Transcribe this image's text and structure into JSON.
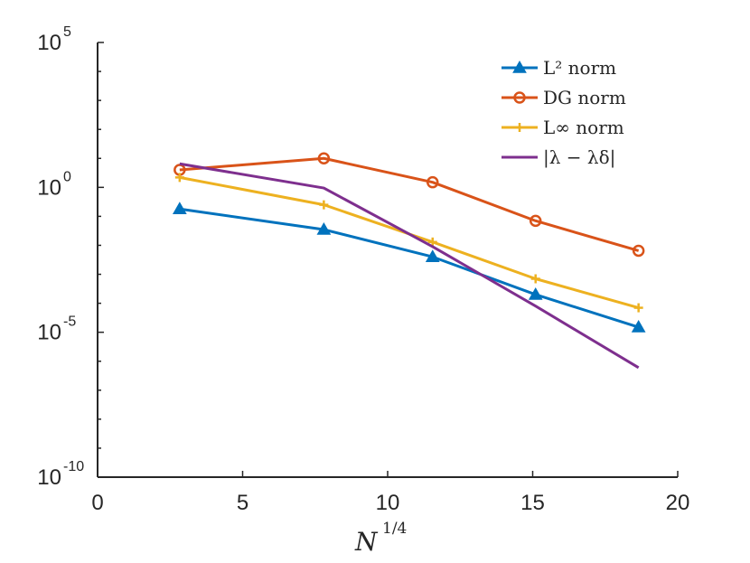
{
  "chart_data": {
    "type": "line",
    "xlabel": "N",
    "xlabel_sup": "1/4",
    "yscale": "log",
    "xlim": [
      0,
      20
    ],
    "ylim": [
      1e-10,
      100000
    ],
    "xticks": [
      0,
      5,
      10,
      15,
      20
    ],
    "yticks": [
      {
        "base": "10",
        "exp": "5",
        "value": 100000
      },
      {
        "base": "10",
        "exp": "0",
        "value": 1
      },
      {
        "base": "10",
        "exp": "-5",
        "value": 1e-05
      },
      {
        "base": "10",
        "exp": "-10",
        "value": 1e-10
      }
    ],
    "grid": false,
    "legend_position": "top-right",
    "series": [
      {
        "name": "L² norm",
        "color": "#0072BD",
        "marker": "triangle",
        "x": [
          2.83,
          7.8,
          11.55,
          15.1,
          18.65
        ],
        "y": [
          0.18,
          0.035,
          0.004,
          0.0002,
          1.5e-05
        ]
      },
      {
        "name": "DG norm",
        "color": "#D95319",
        "marker": "circle",
        "x": [
          2.83,
          7.8,
          11.55,
          15.1,
          18.65
        ],
        "y": [
          4,
          10,
          1.5,
          0.07,
          0.0065
        ]
      },
      {
        "name": "L∞ norm",
        "color": "#EDB120",
        "marker": "plus",
        "x": [
          2.83,
          7.8,
          11.55,
          15.1,
          18.65
        ],
        "y": [
          2.2,
          0.25,
          0.013,
          0.0007,
          7e-05
        ]
      },
      {
        "name": "|λ − λδ|",
        "color": "#7E2F8E",
        "marker": "none",
        "x": [
          2.83,
          7.8,
          11.55,
          15.1,
          18.65
        ],
        "y": [
          6.5,
          0.95,
          0.009,
          8e-05,
          6e-07
        ]
      }
    ]
  }
}
